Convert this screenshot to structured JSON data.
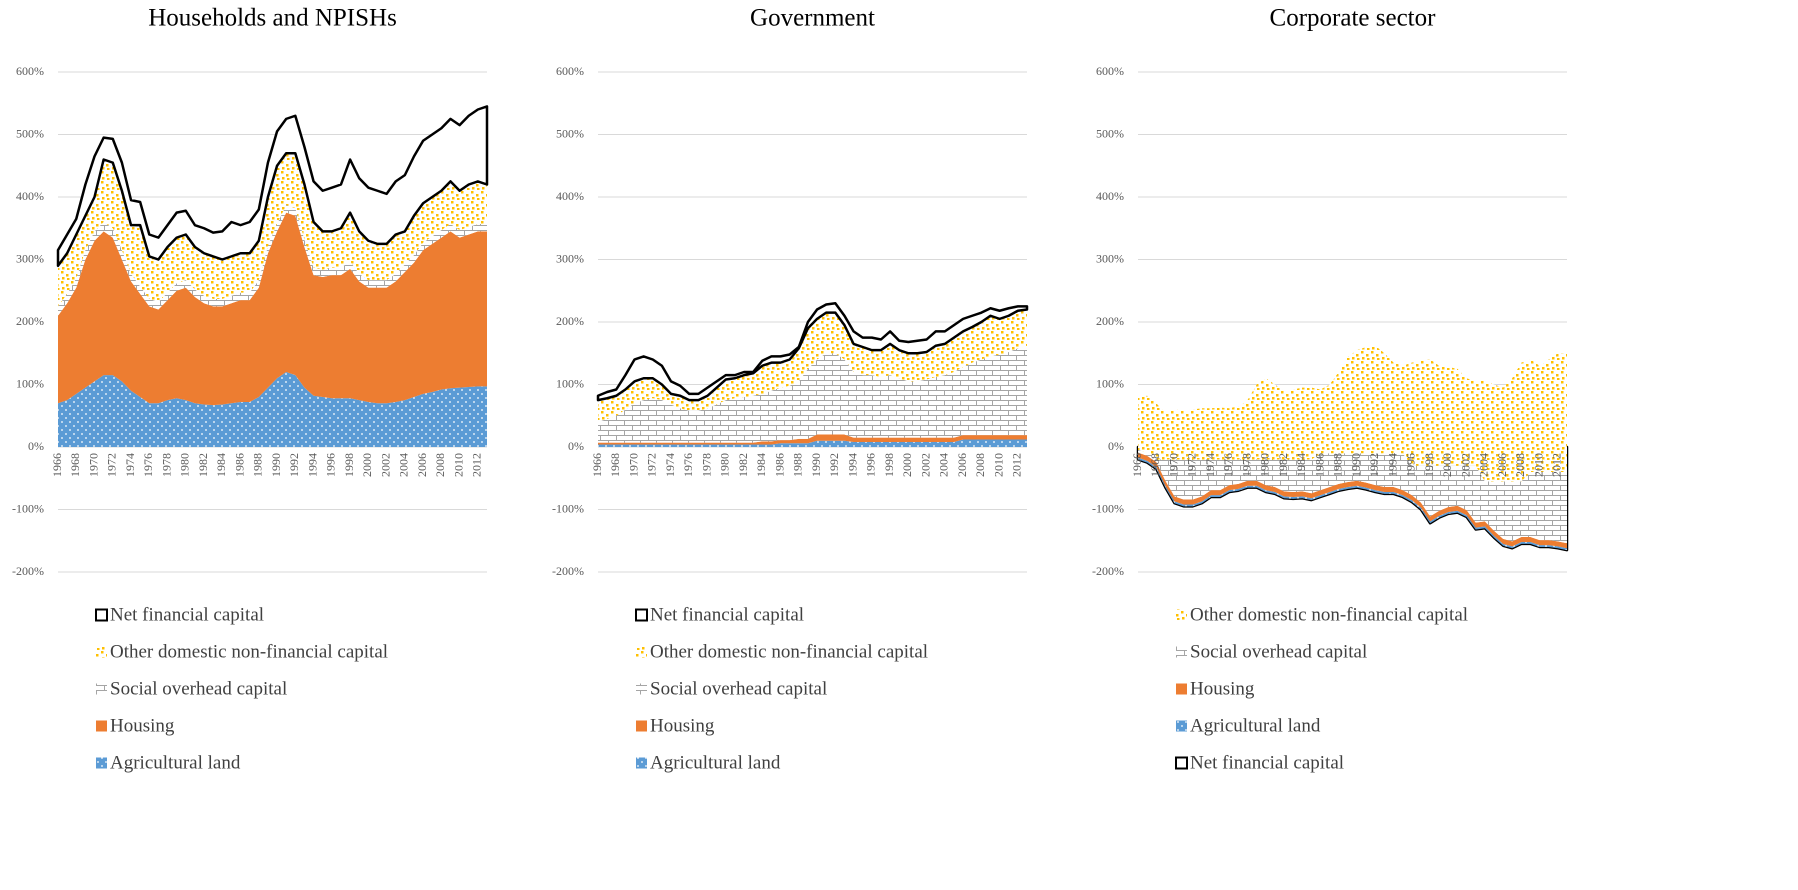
{
  "chart_data": [
    {
      "type": "area",
      "stacked": true,
      "title": "Households and NPISHs",
      "categories": [
        "1966",
        null,
        "1968",
        null,
        "1970",
        null,
        "1972",
        null,
        "1974",
        null,
        "1976",
        null,
        "1978",
        null,
        "1980",
        null,
        "1982",
        null,
        "1984",
        null,
        "1986",
        null,
        "1988",
        null,
        "1990",
        null,
        "1992",
        null,
        "1994",
        null,
        "1996",
        null,
        "1998",
        null,
        "2000",
        null,
        "2002",
        null,
        "2004",
        null,
        "2006",
        null,
        "2008",
        null,
        "2010",
        null,
        "2012",
        null
      ],
      "ylim": [
        -200,
        600
      ],
      "yticks": [
        {
          "value": -200,
          "label": "-200%"
        },
        {
          "value": -100,
          "label": "-100%"
        },
        {
          "value": 0,
          "label": "0%"
        },
        {
          "value": 100,
          "label": "100%"
        },
        {
          "value": 200,
          "label": "200%"
        },
        {
          "value": 300,
          "label": "300%"
        },
        {
          "value": 400,
          "label": "400%"
        },
        {
          "value": 500,
          "label": "500%"
        },
        {
          "value": 600,
          "label": "600%"
        }
      ],
      "grid": true,
      "series": [
        {
          "name": "Agricultural land",
          "color": "#5b9bd5",
          "pattern": "dots",
          "values": [
            70,
            75,
            85,
            95,
            105,
            115,
            115,
            105,
            90,
            80,
            70,
            70,
            75,
            78,
            75,
            70,
            68,
            67,
            68,
            70,
            72,
            72,
            80,
            95,
            110,
            120,
            115,
            95,
            82,
            80,
            78,
            78,
            78,
            75,
            72,
            70,
            70,
            72,
            75,
            80,
            85,
            88,
            92,
            94,
            95,
            96,
            97,
            97
          ]
        },
        {
          "name": "Housing",
          "color": "#ed7d31",
          "pattern": "solid",
          "values": [
            140,
            155,
            170,
            205,
            225,
            230,
            220,
            195,
            175,
            165,
            155,
            150,
            160,
            172,
            180,
            170,
            162,
            158,
            157,
            160,
            163,
            163,
            175,
            215,
            235,
            255,
            255,
            225,
            193,
            192,
            197,
            197,
            207,
            190,
            183,
            185,
            185,
            193,
            205,
            215,
            230,
            237,
            243,
            251,
            240,
            244,
            248,
            248
          ]
        },
        {
          "name": "Social overhead capital",
          "color": "#a5a5a5",
          "pattern": "bricks",
          "values": [
            15,
            15,
            15,
            15,
            15,
            15,
            15,
            15,
            12,
            12,
            12,
            12,
            12,
            12,
            12,
            12,
            12,
            12,
            12,
            12,
            12,
            12,
            12,
            12,
            12,
            12,
            12,
            12,
            12,
            12,
            12,
            12,
            12,
            12,
            12,
            12,
            12,
            12,
            12,
            12,
            12,
            12,
            12,
            12,
            12,
            12,
            12,
            12
          ]
        },
        {
          "name": "Other domestic non-financial capital",
          "color": "#ffc000",
          "pattern": "confetti",
          "values": [
            65,
            65,
            70,
            55,
            55,
            100,
            105,
            95,
            78,
            98,
            68,
            68,
            73,
            73,
            73,
            68,
            68,
            68,
            63,
            63,
            63,
            63,
            63,
            78,
            93,
            83,
            88,
            88,
            73,
            61,
            58,
            63,
            78,
            68,
            63,
            58,
            58,
            63,
            53,
            63,
            63,
            63,
            63,
            68,
            63,
            68,
            68,
            63
          ]
        },
        {
          "name": "Net financial capital",
          "color": "#000000",
          "pattern": "outline",
          "values": [
            25,
            30,
            25,
            50,
            65,
            35,
            38,
            45,
            40,
            37,
            35,
            35,
            35,
            40,
            38,
            35,
            40,
            38,
            45,
            55,
            45,
            50,
            50,
            55,
            55,
            55,
            60,
            60,
            65,
            65,
            70,
            70,
            85,
            85,
            85,
            85,
            80,
            85,
            90,
            95,
            100,
            100,
            100,
            100,
            105,
            110,
            115,
            125
          ]
        }
      ]
    },
    {
      "type": "area",
      "stacked": true,
      "title": "Government",
      "categories": [
        "1966",
        null,
        "1968",
        null,
        "1970",
        null,
        "1972",
        null,
        "1974",
        null,
        "1976",
        null,
        "1978",
        null,
        "1980",
        null,
        "1982",
        null,
        "1984",
        null,
        "1986",
        null,
        "1988",
        null,
        "1990",
        null,
        "1992",
        null,
        "1994",
        null,
        "1996",
        null,
        "1998",
        null,
        "2000",
        null,
        "2002",
        null,
        "2004",
        null,
        "2006",
        null,
        "2008",
        null,
        "2010",
        null,
        "2012",
        null
      ],
      "ylim": [
        -200,
        600
      ],
      "yticks": [
        {
          "value": -200,
          "label": "-200%"
        },
        {
          "value": -100,
          "label": "-100%"
        },
        {
          "value": 0,
          "label": "0%"
        },
        {
          "value": 100,
          "label": "100%"
        },
        {
          "value": 200,
          "label": "200%"
        },
        {
          "value": 300,
          "label": "300%"
        },
        {
          "value": 400,
          "label": "400%"
        },
        {
          "value": 500,
          "label": "500%"
        },
        {
          "value": 600,
          "label": "600%"
        }
      ],
      "grid": true,
      "series": [
        {
          "name": "Agricultural land",
          "color": "#5b9bd5",
          "pattern": "dots",
          "values": [
            4,
            4,
            4,
            4,
            4,
            4,
            4,
            4,
            4,
            4,
            4,
            4,
            4,
            4,
            4,
            4,
            4,
            4,
            4,
            4,
            6,
            6,
            6,
            6,
            10,
            10,
            10,
            10,
            8,
            8,
            8,
            8,
            8,
            8,
            8,
            8,
            8,
            8,
            8,
            8,
            12,
            12,
            12,
            12,
            12,
            12,
            12,
            12
          ]
        },
        {
          "name": "Housing",
          "color": "#ed7d31",
          "pattern": "solid",
          "values": [
            3,
            3,
            3,
            3,
            3,
            3,
            3,
            3,
            3,
            3,
            3,
            3,
            3,
            3,
            3,
            3,
            3,
            3,
            5,
            5,
            5,
            5,
            7,
            7,
            10,
            10,
            10,
            10,
            7,
            7,
            7,
            7,
            7,
            7,
            7,
            7,
            7,
            7,
            7,
            7,
            7,
            7,
            7,
            7,
            7,
            7,
            7,
            7
          ]
        },
        {
          "name": "Social overhead capital",
          "color": "#a5a5a5",
          "pattern": "bricks",
          "values": [
            33,
            38,
            43,
            53,
            63,
            68,
            71,
            68,
            61,
            55,
            51,
            51,
            55,
            61,
            68,
            71,
            73,
            75,
            76,
            81,
            84,
            87,
            92,
            112,
            120,
            130,
            130,
            120,
            105,
            100,
            100,
            97,
            100,
            95,
            90,
            90,
            93,
            97,
            100,
            105,
            109,
            116,
            121,
            126,
            129,
            133,
            139,
            143
          ]
        },
        {
          "name": "Other domestic non-financial capital",
          "color": "#ffc000",
          "pattern": "confetti",
          "values": [
            35,
            33,
            32,
            32,
            35,
            35,
            32,
            25,
            17,
            20,
            17,
            17,
            20,
            27,
            33,
            32,
            35,
            36,
            45,
            45,
            40,
            42,
            53,
            65,
            65,
            65,
            65,
            55,
            45,
            45,
            40,
            43,
            50,
            45,
            45,
            45,
            44,
            50,
            50,
            55,
            57,
            57,
            60,
            65,
            57,
            58,
            60,
            58
          ]
        },
        {
          "name": "Net financial capital",
          "color": "#000000",
          "pattern": "outline",
          "values": [
            7,
            10,
            10,
            23,
            35,
            35,
            30,
            30,
            20,
            16,
            10,
            10,
            13,
            10,
            7,
            5,
            5,
            2,
            8,
            10,
            10,
            8,
            2,
            10,
            15,
            13,
            15,
            15,
            20,
            15,
            20,
            17,
            20,
            15,
            18,
            20,
            20,
            23,
            20,
            20,
            20,
            18,
            15,
            12,
            13,
            12,
            7,
            5
          ]
        }
      ]
    },
    {
      "type": "area",
      "stacked": true,
      "title": "Corporate sector",
      "categories": [
        "1966",
        null,
        "1968",
        null,
        "1970",
        null,
        "1972",
        null,
        "1974",
        null,
        "1976",
        null,
        "1978",
        null,
        "1980",
        null,
        "1982",
        null,
        "1984",
        null,
        "1986",
        null,
        "1988",
        null,
        "1990",
        null,
        "1992",
        null,
        "1994",
        null,
        "1996",
        null,
        "1998",
        null,
        "2000",
        null,
        "2002",
        null,
        "2004",
        null,
        "2006",
        null,
        "2008",
        null,
        "2010",
        null,
        "2012",
        null
      ],
      "ylim": [
        -200,
        600
      ],
      "yticks": [
        {
          "value": -200,
          "label": "-200%"
        },
        {
          "value": -100,
          "label": "-100%"
        },
        {
          "value": 0,
          "label": "0%"
        },
        {
          "value": 100,
          "label": "100%"
        },
        {
          "value": 200,
          "label": "200%"
        },
        {
          "value": 300,
          "label": "300%"
        },
        {
          "value": 400,
          "label": "400%"
        },
        {
          "value": 500,
          "label": "500%"
        },
        {
          "value": 600,
          "label": "600%"
        }
      ],
      "grid": true,
      "series": [
        {
          "name": "Net financial capital",
          "color": "#000000",
          "pattern": "outline",
          "values": [
            -20,
            -25,
            -35,
            -65,
            -90,
            -95,
            -95,
            -90,
            -80,
            -80,
            -72,
            -70,
            -65,
            -65,
            -72,
            -75,
            -82,
            -83,
            -82,
            -85,
            -80,
            -75,
            -70,
            -67,
            -65,
            -68,
            -72,
            -75,
            -75,
            -80,
            -88,
            -100,
            -122,
            -113,
            -107,
            -105,
            -112,
            -132,
            -130,
            -145,
            -158,
            -162,
            -155,
            -155,
            -160,
            -160,
            -162,
            -165
          ]
        },
        {
          "name": "Agricultural land",
          "color": "#5b9bd5",
          "pattern": "dots",
          "values": [
            3,
            3,
            3,
            3,
            3,
            3,
            3,
            3,
            3,
            3,
            3,
            3,
            3,
            3,
            3,
            3,
            3,
            3,
            3,
            3,
            3,
            3,
            3,
            3,
            3,
            3,
            3,
            3,
            3,
            3,
            3,
            3,
            3,
            3,
            3,
            3,
            3,
            3,
            3,
            3,
            3,
            3,
            3,
            3,
            3,
            3,
            3,
            3
          ]
        },
        {
          "name": "Housing",
          "color": "#ed7d31",
          "pattern": "solid",
          "values": [
            8,
            8,
            8,
            8,
            8,
            8,
            8,
            8,
            8,
            8,
            8,
            8,
            8,
            8,
            8,
            8,
            8,
            8,
            8,
            8,
            8,
            8,
            8,
            8,
            8,
            8,
            8,
            8,
            8,
            8,
            8,
            8,
            8,
            8,
            8,
            8,
            8,
            8,
            8,
            8,
            8,
            8,
            8,
            8,
            8,
            8,
            8,
            8
          ]
        },
        {
          "name": "Social overhead capital",
          "color": "#a5a5a5",
          "pattern": "bricks",
          "values": [
            4,
            6,
            4,
            34,
            59,
            64,
            64,
            59,
            49,
            49,
            41,
            39,
            34,
            34,
            41,
            44,
            51,
            52,
            51,
            54,
            59,
            54,
            49,
            46,
            44,
            47,
            51,
            54,
            54,
            59,
            47,
            59,
            81,
            72,
            66,
            64,
            71,
            91,
            64,
            79,
            92,
            96,
            89,
            104,
            109,
            109,
            111,
            114
          ]
        },
        {
          "name": "Other domestic non-financial capital",
          "color": "#ffc000",
          "pattern": "confetti",
          "values": [
            85,
            90,
            90,
            75,
            80,
            78,
            80,
            82,
            82,
            83,
            82,
            85,
            95,
            120,
            130,
            120,
            110,
            112,
            115,
            115,
            102,
            110,
            130,
            155,
            165,
            170,
            172,
            160,
            145,
            140,
            165,
            168,
            170,
            160,
            158,
            155,
            140,
            135,
            163,
            155,
            150,
            165,
            190,
            180,
            170,
            180,
            190,
            190
          ]
        }
      ]
    }
  ]
}
